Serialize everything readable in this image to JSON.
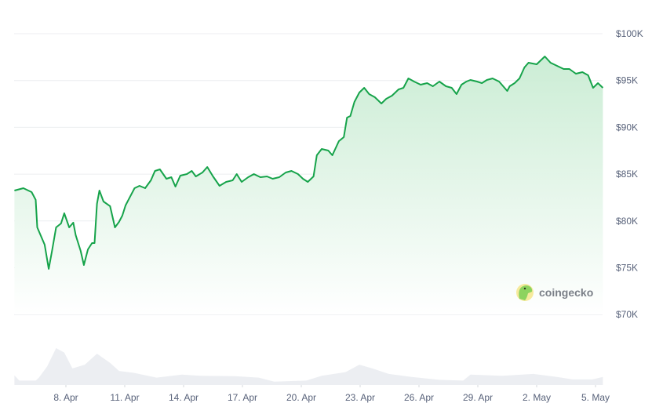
{
  "chart_data": {
    "type": "area",
    "title": "",
    "xlabel": "",
    "ylabel": "",
    "ylim": [
      65000,
      100000
    ],
    "y_ticks": [
      "$100K",
      "$95K",
      "$90K",
      "$85K",
      "$80K",
      "$75K",
      "$70K"
    ],
    "y_tick_values": [
      100000,
      95000,
      90000,
      85000,
      80000,
      75000,
      70000
    ],
    "x_ticks": [
      "8. Apr",
      "11. Apr",
      "14. Apr",
      "17. Apr",
      "20. Apr",
      "23. Apr",
      "26. Apr",
      "29. Apr",
      "2. May",
      "5. May"
    ],
    "x_tick_dates": [
      "Apr 8 00:00",
      "Apr 11 00:00",
      "Apr 14 00:00",
      "Apr 17 00:00",
      "Apr 20 00:00",
      "Apr 23 00:00",
      "Apr 26 00:00",
      "Apr 29 00:00",
      "May 2 00:00",
      "May 5 00:00"
    ],
    "grid": true,
    "line_color": "#16a34a",
    "fill_color": "#c9ecd3",
    "volume_color": "#eceef2",
    "series": [
      {
        "x": [
          "Apr 5 09:00",
          "Apr 5 20:00",
          "Apr 6 06:00",
          "Apr 6 11:00",
          "Apr 6 13:00",
          "Apr 6 17:00",
          "Apr 6 22:00",
          "Apr 7 03:00",
          "Apr 7 07:00",
          "Apr 7 12:00",
          "Apr 7 18:00",
          "Apr 7 22:00",
          "Apr 8 04:00",
          "Apr 8 09:00",
          "Apr 8 12:00",
          "Apr 8 18:00",
          "Apr 8 22:00",
          "Apr 9 03:00",
          "Apr 9 08:00",
          "Apr 9 11:00",
          "Apr 9 14:00",
          "Apr 9 17:00",
          "Apr 9 22:00",
          "Apr 10 06:00",
          "Apr 10 12:00",
          "Apr 10 17:00",
          "Apr 10 21:00",
          "Apr 11 01:00",
          "Apr 11 07:00",
          "Apr 11 12:00",
          "Apr 11 18:00",
          "Apr 12 01:00",
          "Apr 12 08:00",
          "Apr 12 13:00",
          "Apr 12 19:00",
          "Apr 13 03:00",
          "Apr 13 09:00",
          "Apr 13 14:00",
          "Apr 13 20:00",
          "Apr 14 04:00",
          "Apr 14 10:00",
          "Apr 14 15:00",
          "Apr 14 23:00",
          "Apr 15 05:00",
          "Apr 15 12:00",
          "Apr 15 20:00",
          "Apr 16 04:00",
          "Apr 16 12:00",
          "Apr 16 17:00",
          "Apr 16 23:00",
          "Apr 17 07:00",
          "Apr 17 14:00",
          "Apr 17 22:00",
          "Apr 18 06:00",
          "Apr 18 13:00",
          "Apr 18 21:00",
          "Apr 19 05:00",
          "Apr 19 12:00",
          "Apr 19 20:00",
          "Apr 20 02:00",
          "Apr 20 08:00",
          "Apr 20 15:00",
          "Apr 20 19:00",
          "Apr 21 01:00",
          "Apr 21 09:00",
          "Apr 21 14:00",
          "Apr 21 22:00",
          "Apr 22 04:00",
          "Apr 22 08:00",
          "Apr 22 12:00",
          "Apr 22 17:00",
          "Apr 22 23:00",
          "Apr 23 05:00",
          "Apr 23 11:00",
          "Apr 23 18:00",
          "Apr 24 02:00",
          "Apr 24 08:00",
          "Apr 24 15:00",
          "Apr 24 23:00",
          "Apr 25 05:00",
          "Apr 25 11:00",
          "Apr 25 18:00",
          "Apr 26 02:00",
          "Apr 26 10:00",
          "Apr 26 17:00",
          "Apr 27 01:00",
          "Apr 27 09:00",
          "Apr 27 16:00",
          "Apr 27 22:00",
          "Apr 28 04:00",
          "Apr 28 10:00",
          "Apr 28 15:00",
          "Apr 28 23:00",
          "Apr 29 05:00",
          "Apr 29 11:00",
          "Apr 29 18:00",
          "Apr 30 02:00",
          "Apr 30 12:00",
          "Apr 30 15:00",
          "Apr 30 21:00",
          "May 1 03:00",
          "May 1 09:00",
          "May 1 14:00",
          "May 2 00:00",
          "May 2 10:00",
          "May 2 17:00",
          "May 3 01:00",
          "May 3 09:00",
          "May 3 16:00",
          "May 4 00:00",
          "May 4 08:00",
          "May 4 15:00",
          "May 4 21:00",
          "May 5 03:00",
          "May 5 09:00"
        ],
        "y": [
          83250,
          83500,
          83080,
          82250,
          79310,
          78480,
          77470,
          74880,
          76800,
          79310,
          79730,
          80820,
          79310,
          79820,
          78480,
          76800,
          75290,
          76970,
          77640,
          77640,
          81830,
          83250,
          82080,
          81580,
          79310,
          79900,
          80570,
          81660,
          82670,
          83500,
          83750,
          83500,
          84340,
          85340,
          85510,
          84510,
          84670,
          83670,
          84840,
          85010,
          85340,
          84760,
          85180,
          85760,
          84760,
          83750,
          84170,
          84340,
          85010,
          84170,
          84670,
          85010,
          84670,
          84760,
          84510,
          84670,
          85180,
          85340,
          85010,
          84510,
          84170,
          84760,
          87020,
          87690,
          87520,
          87020,
          88530,
          88950,
          91040,
          91210,
          92710,
          93720,
          94220,
          93550,
          93220,
          92550,
          93050,
          93380,
          94050,
          94220,
          95230,
          94890,
          94560,
          94720,
          94390,
          94890,
          94390,
          94220,
          93550,
          94560,
          94890,
          95060,
          94890,
          94720,
          95060,
          95230,
          94890,
          93890,
          94390,
          94720,
          95230,
          96400,
          96900,
          96730,
          97570,
          96900,
          96570,
          96230,
          96230,
          95730,
          95900,
          95560,
          94220,
          94720,
          94220
        ]
      }
    ],
    "volume_relative": {
      "x": [
        "Apr 5 09:00",
        "Apr 5 15:00",
        "Apr 6 11:00",
        "Apr 6 15:00",
        "Apr 7 01:00",
        "Apr 7 12:00",
        "Apr 7 22:00",
        "Apr 8 08:00",
        "Apr 8 23:00",
        "Apr 9 14:00",
        "Apr 10 06:00",
        "Apr 10 17:00",
        "Apr 11 11:00",
        "Apr 12 15:00",
        "Apr 13 22:00",
        "Apr 14 21:00",
        "Apr 16 15:00",
        "Apr 17 20:00",
        "Apr 18 15:00",
        "Apr 20 06:00",
        "Apr 21 01:00",
        "Apr 22 06:00",
        "Apr 22 23:00",
        "Apr 23 15:00",
        "Apr 24 11:00",
        "Apr 25 15:00",
        "Apr 27 01:00",
        "Apr 28 06:00",
        "Apr 28 15:00",
        "Apr 30 06:00",
        "May 1 20:00",
        "May 3 01:00",
        "May 3 20:00",
        "May 4 20:00",
        "May 5 09:00"
      ],
      "y": [
        0.26,
        0.12,
        0.12,
        0.2,
        0.5,
        1.0,
        0.88,
        0.45,
        0.55,
        0.85,
        0.6,
        0.38,
        0.33,
        0.2,
        0.28,
        0.25,
        0.24,
        0.2,
        0.09,
        0.12,
        0.25,
        0.35,
        0.55,
        0.45,
        0.3,
        0.22,
        0.14,
        0.12,
        0.28,
        0.25,
        0.3,
        0.22,
        0.15,
        0.15,
        0.22
      ]
    }
  },
  "watermark": {
    "text": "coingecko",
    "icon": "gecko-logo-icon"
  }
}
